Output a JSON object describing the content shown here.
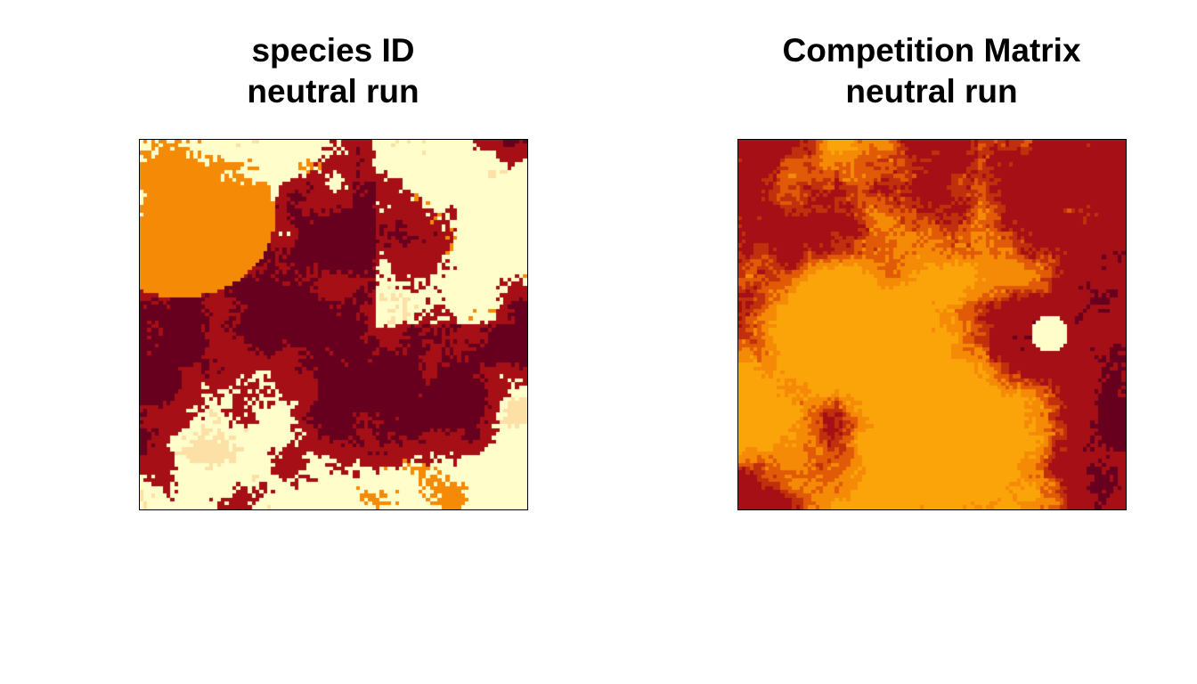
{
  "chart_data": [
    {
      "type": "heatmap",
      "title": "species ID",
      "subtitle": "neutral run",
      "xlabel": "",
      "ylabel": "",
      "grid": false,
      "legend": "none",
      "axes_shown": false,
      "grid_size": [
        100,
        96
      ],
      "palette": [
        "#67001f",
        "#a50f15",
        "#f58a06",
        "#fde0a6",
        "#fffecb"
      ],
      "palette_name": "heat (red-orange-yellow-white)",
      "dominant_classes": [
        "#fffecb",
        "#a50f15",
        "#f58a06",
        "#67001f",
        "#fde0a6"
      ]
    },
    {
      "type": "heatmap",
      "title": "Competition Matrix",
      "subtitle": "neutral run",
      "xlabel": "",
      "ylabel": "",
      "grid": false,
      "legend": "none",
      "axes_shown": false,
      "grid_size": [
        100,
        96
      ],
      "palette": [
        "#67001f",
        "#a50f15",
        "#c1300c",
        "#e05a07",
        "#f58a06",
        "#fba40a",
        "#fffecb"
      ],
      "palette_name": "heat (red-orange-yellow-white)",
      "dominant_classes": [
        "#a50f15",
        "#f58a06",
        "#fba40a",
        "#fffecb"
      ]
    }
  ]
}
